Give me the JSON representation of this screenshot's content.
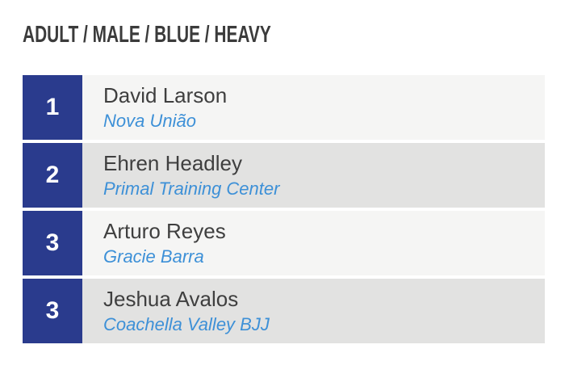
{
  "category": {
    "title": "ADULT / MALE / BLUE / HEAVY"
  },
  "results": [
    {
      "place": "1",
      "name": "David Larson",
      "team": "Nova União"
    },
    {
      "place": "2",
      "name": "Ehren Headley",
      "team": "Primal Training Center"
    },
    {
      "place": "3",
      "name": "Arturo Reyes",
      "team": "Gracie Barra"
    },
    {
      "place": "3",
      "name": "Jeshua Avalos",
      "team": "Coachella Valley BJJ"
    }
  ],
  "colors": {
    "badge_blue": "#2a3b8d",
    "team_link_blue": "#3d90d7",
    "row_light": "#f5f5f4",
    "row_dark": "#e2e2e1",
    "name_text": "#3f3f3f",
    "title_text": "#3b3b3b"
  }
}
